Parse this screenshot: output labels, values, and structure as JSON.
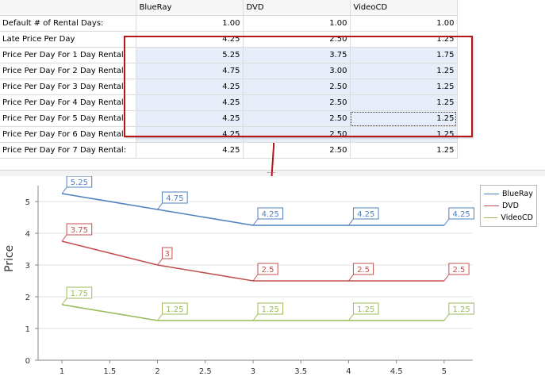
{
  "grid": {
    "columns": [
      "",
      "BlueRay",
      "DVD",
      "VideoCD"
    ],
    "rows": [
      {
        "label": "Default # of Rental Days:",
        "values": [
          "1.00",
          "1.00",
          "1.00"
        ]
      },
      {
        "label": "Late Price Per Day",
        "values": [
          "4.25",
          "2.50",
          "1.25"
        ]
      },
      {
        "label": "Price Per Day For 1 Day Rental:",
        "values": [
          "5.25",
          "3.75",
          "1.75"
        ]
      },
      {
        "label": "Price Per Day For 2 Day Rental:",
        "values": [
          "4.75",
          "3.00",
          "1.25"
        ]
      },
      {
        "label": "Price Per Day For 3 Day Rental:",
        "values": [
          "4.25",
          "2.50",
          "1.25"
        ]
      },
      {
        "label": "Price Per Day For 4 Day Rental:",
        "values": [
          "4.25",
          "2.50",
          "1.25"
        ]
      },
      {
        "label": "Price Per Day For 5 Day Rental:",
        "values": [
          "4.25",
          "2.50",
          "1.25"
        ]
      },
      {
        "label": "Price Per Day For 6 Day Rental:",
        "values": [
          "4.25",
          "2.50",
          "1.25"
        ]
      },
      {
        "label": "Price Per Day For 7 Day Rental:",
        "values": [
          "4.25",
          "2.50",
          "1.25"
        ]
      }
    ],
    "selection_color": "#b8141a"
  },
  "chart_data": {
    "type": "line",
    "title": "",
    "xlabel": "",
    "ylabel": "Price",
    "x": [
      1,
      2,
      3,
      4,
      5
    ],
    "xlim": [
      0.75,
      5.3
    ],
    "ylim": [
      0,
      5.5
    ],
    "xticks": [
      1,
      1.5,
      2,
      2.5,
      3,
      3.5,
      4,
      4.5,
      5
    ],
    "xtick_labels": [
      "1",
      "1.5",
      "2",
      "2.5",
      "3",
      "3.5",
      "4",
      "4.5",
      "5"
    ],
    "yticks": [
      0,
      1,
      2,
      3,
      4,
      5
    ],
    "ytick_labels": [
      "0",
      "1",
      "2",
      "3",
      "4",
      "5"
    ],
    "grid": true,
    "legend_position": "top-right",
    "series": [
      {
        "name": "BlueRay",
        "color": "#4f81bd",
        "values": [
          5.25,
          4.75,
          4.25,
          4.25,
          4.25
        ],
        "labels": [
          "5.25",
          "4.75",
          "4.25",
          "4.25",
          "4.25"
        ]
      },
      {
        "name": "DVD",
        "color": "#c0504d",
        "values": [
          3.75,
          3,
          2.5,
          2.5,
          2.5
        ],
        "labels": [
          "3.75",
          "3",
          "2.5",
          "2.5",
          "2.5"
        ]
      },
      {
        "name": "VideoCD",
        "color": "#9bbb59",
        "values": [
          1.75,
          1.25,
          1.25,
          1.25,
          1.25
        ],
        "labels": [
          "1.75",
          "1.25",
          "1.25",
          "1.25",
          "1.25"
        ]
      }
    ]
  }
}
